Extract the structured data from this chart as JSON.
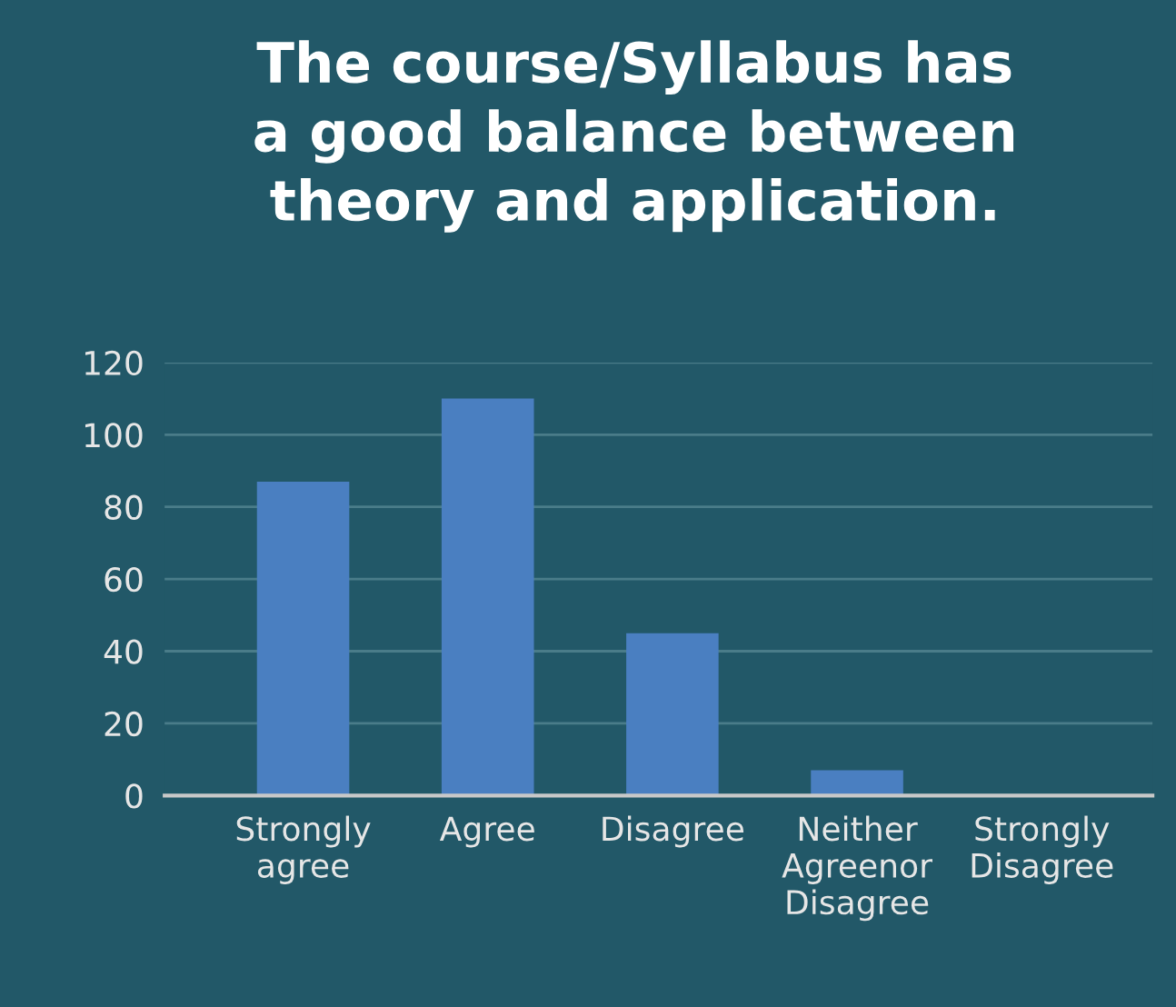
{
  "chart_data": {
    "type": "bar",
    "title": "The course/Syllabus has\na good balance between\ntheory and application.",
    "categories": [
      "Strongly\nagree",
      "Agree",
      "Disagree",
      "Neither\nAgreenor\nDisagree",
      "Strongly\nDisagree"
    ],
    "values": [
      87,
      110,
      45,
      7,
      0
    ],
    "color": "#4a7fc1",
    "ylim": [
      0,
      120
    ],
    "yticks": [
      0,
      20,
      40,
      60,
      80,
      100,
      120
    ],
    "grid": "y",
    "legend": false
  }
}
